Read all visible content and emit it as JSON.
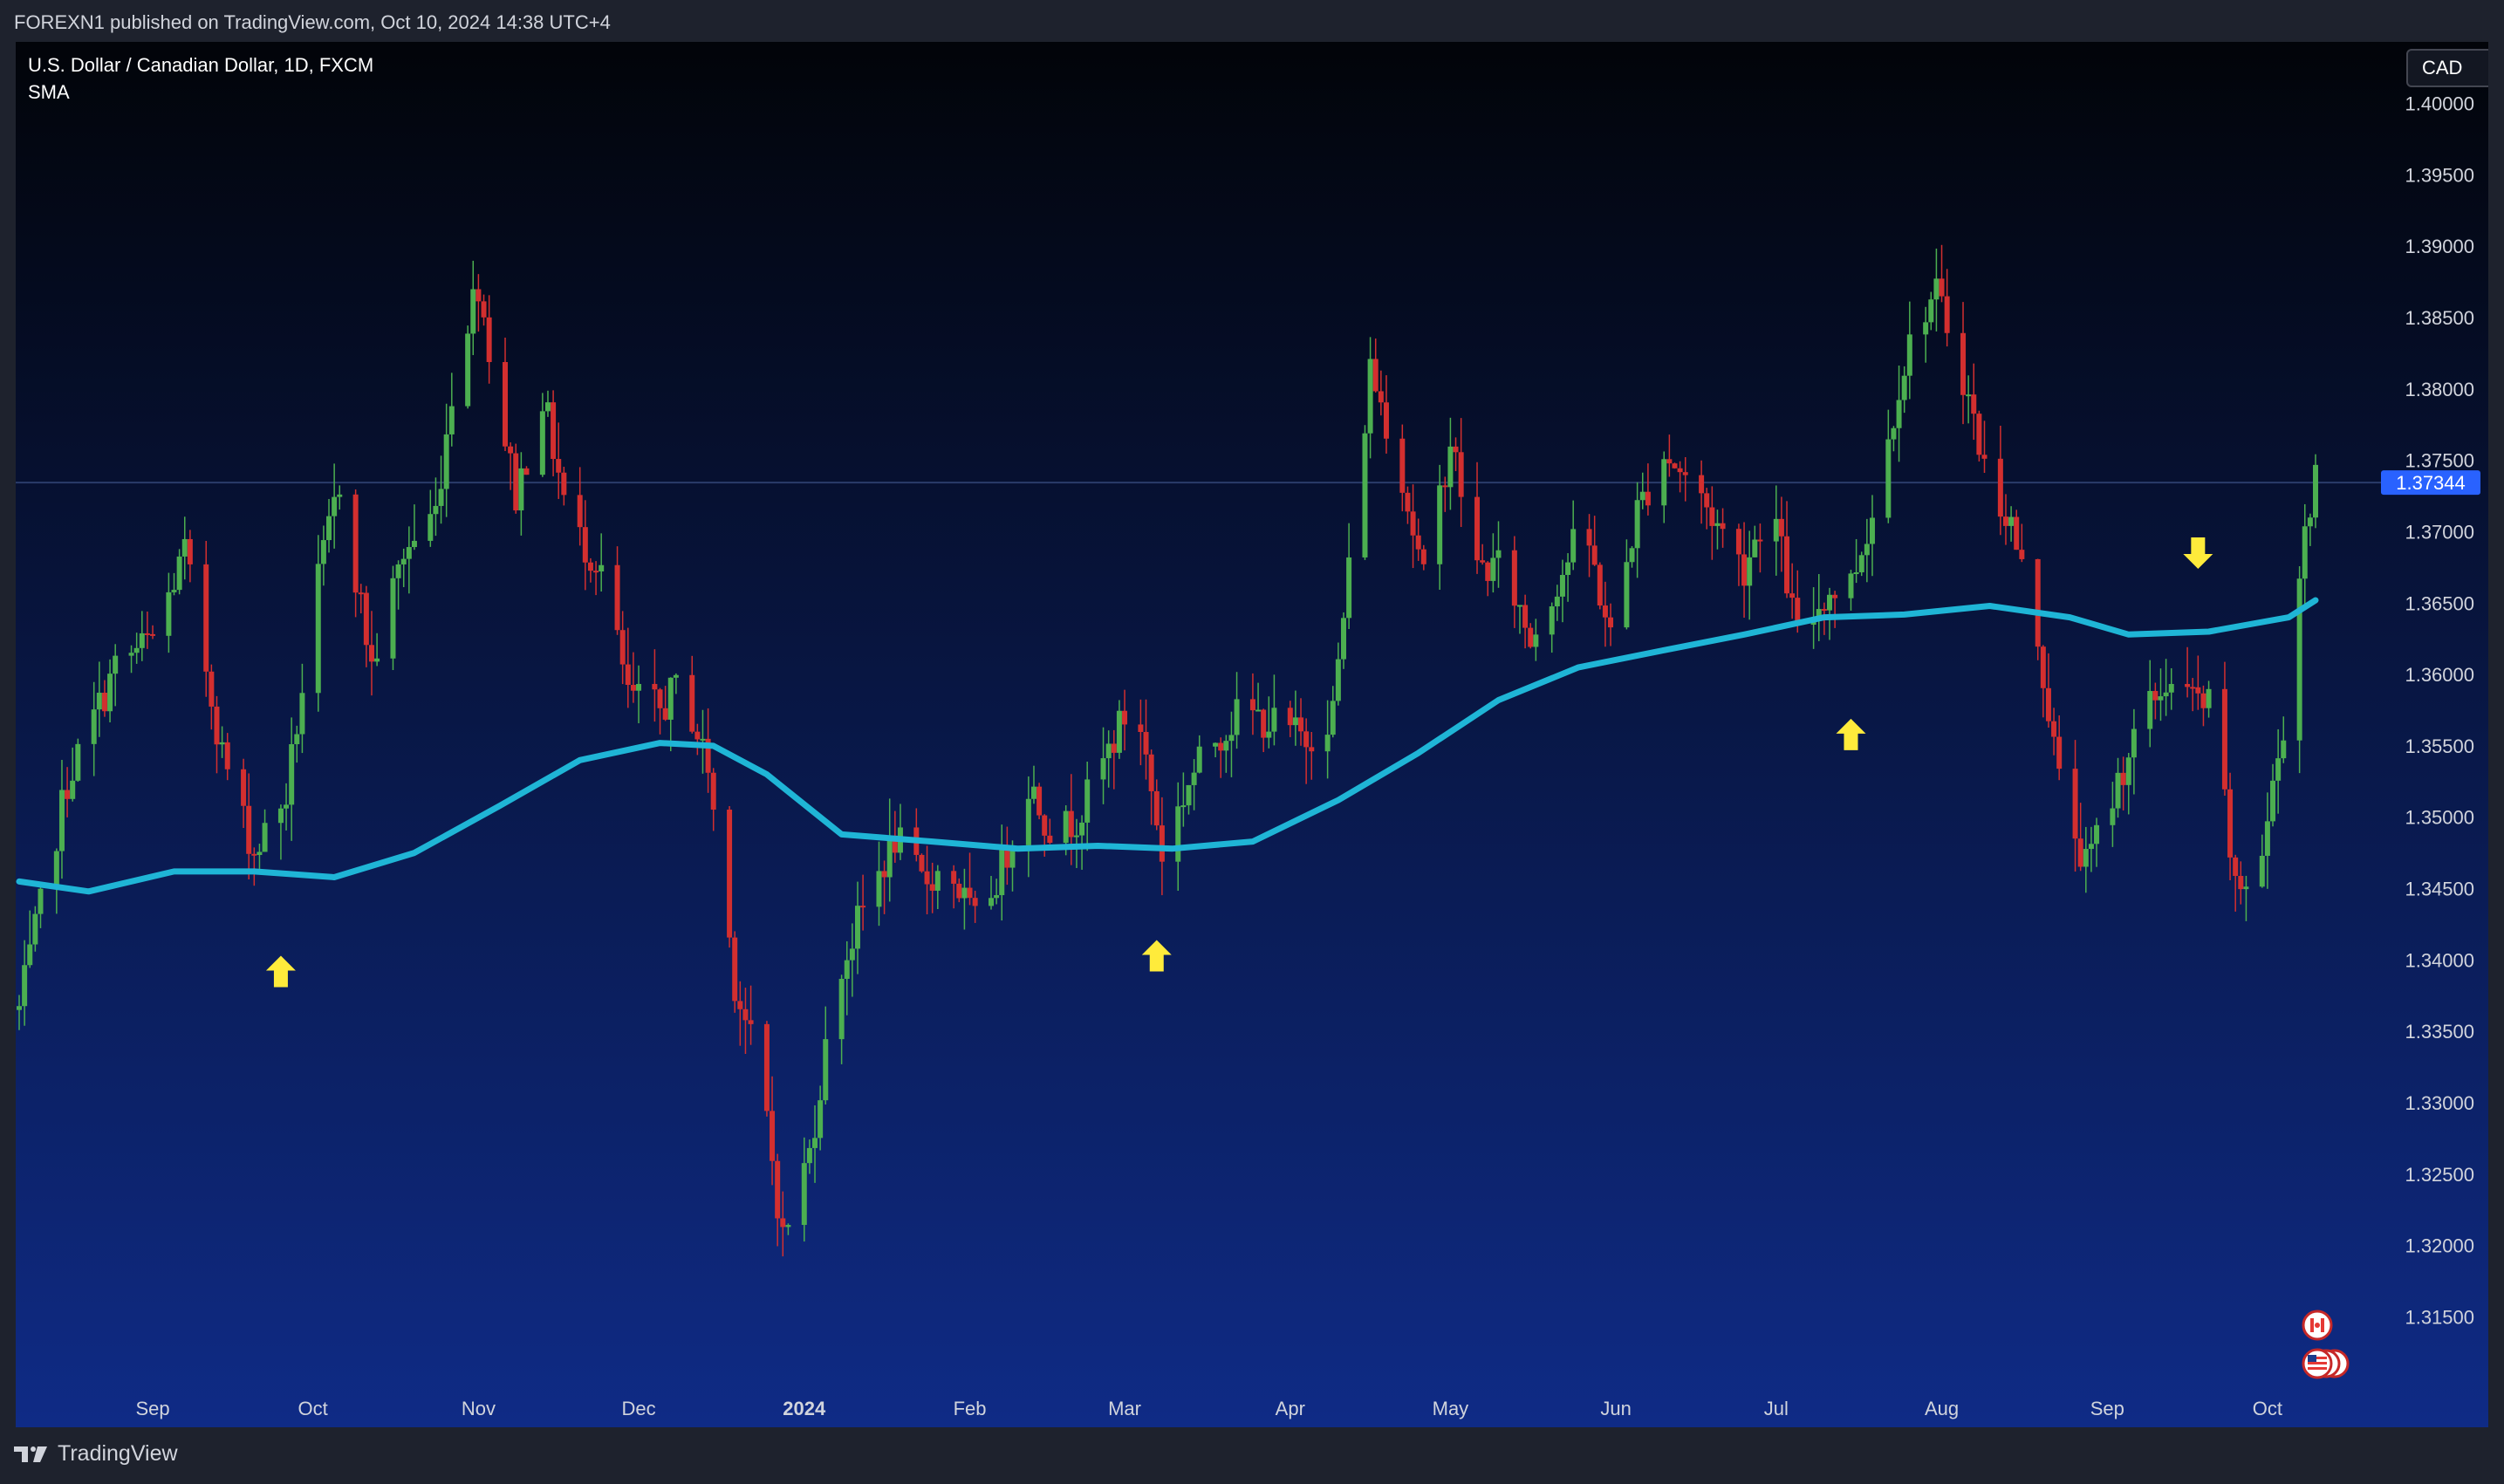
{
  "header": {
    "publish_text": "FOREXN1 published on TradingView.com, Oct 10, 2024 14:38 UTC+4"
  },
  "legend": {
    "symbol_title": "U.S. Dollar / Canadian Dollar, 1D, FXCM",
    "indicator": "SMA"
  },
  "currency": "CAD",
  "footer": {
    "brand": "TradingView",
    "logo_icon": "tradingview-logo-icon"
  },
  "colors": {
    "background_top": "#020409",
    "background_bottom": "#0f2b86",
    "up_candle": "#4caf50",
    "down_candle": "#d32f2f",
    "sma": "#1fb5d6",
    "arrow": "#ffeb3b",
    "price_label": "#2962ff"
  },
  "flags": [
    "canada-flag-icon",
    "usa-flag-icon"
  ],
  "chart_data": {
    "type": "candlestick",
    "symbol": "USDCAD",
    "timeframe": "1D",
    "ylim": [
      1.3,
      1.4025
    ],
    "y_ticks": [
      "1.40000",
      "1.39500",
      "1.39000",
      "1.38500",
      "1.38000",
      "1.37500",
      "1.37000",
      "1.36500",
      "1.36000",
      "1.35500",
      "1.35000",
      "1.34500",
      "1.34000",
      "1.33500",
      "1.33000",
      "1.32500",
      "1.32000",
      "1.31500"
    ],
    "x_ticks": [
      {
        "label": "Sep",
        "date": "2023-09-01"
      },
      {
        "label": "Oct",
        "date": "2023-10-01"
      },
      {
        "label": "Nov",
        "date": "2023-11-01"
      },
      {
        "label": "Dec",
        "date": "2023-12-01"
      },
      {
        "label": "2024",
        "date": "2024-01-01",
        "bold": true
      },
      {
        "label": "Feb",
        "date": "2024-02-01"
      },
      {
        "label": "Mar",
        "date": "2024-03-01"
      },
      {
        "label": "Apr",
        "date": "2024-04-01"
      },
      {
        "label": "May",
        "date": "2024-05-01"
      },
      {
        "label": "Jun",
        "date": "2024-06-01"
      },
      {
        "label": "Jul",
        "date": "2024-07-01"
      },
      {
        "label": "Aug",
        "date": "2024-08-01"
      },
      {
        "label": "Sep",
        "date": "2024-09-01"
      },
      {
        "label": "Oct",
        "date": "2024-10-01"
      }
    ],
    "last_price": "1.37344",
    "close_path": [
      [
        "2023-08-07",
        1.3365
      ],
      [
        "2023-08-16",
        1.3525
      ],
      [
        "2023-08-25",
        1.3605
      ],
      [
        "2023-09-01",
        1.3625
      ],
      [
        "2023-09-07",
        1.3685
      ],
      [
        "2023-09-14",
        1.3545
      ],
      [
        "2023-09-20",
        1.3475
      ],
      [
        "2023-09-26",
        1.3515
      ],
      [
        "2023-10-02",
        1.3665
      ],
      [
        "2023-10-06",
        1.3735
      ],
      [
        "2023-10-12",
        1.3605
      ],
      [
        "2023-10-18",
        1.3685
      ],
      [
        "2023-10-24",
        1.3715
      ],
      [
        "2023-10-28",
        1.3825
      ],
      [
        "2023-11-01",
        1.3875
      ],
      [
        "2023-11-04",
        1.3805
      ],
      [
        "2023-11-08",
        1.3725
      ],
      [
        "2023-11-13",
        1.3795
      ],
      [
        "2023-11-18",
        1.3705
      ],
      [
        "2023-11-24",
        1.3675
      ],
      [
        "2023-11-29",
        1.3585
      ],
      [
        "2023-12-05",
        1.3575
      ],
      [
        "2023-12-09",
        1.3595
      ],
      [
        "2023-12-14",
        1.3535
      ],
      [
        "2023-12-19",
        1.3385
      ],
      [
        "2023-12-24",
        1.3315
      ],
      [
        "2023-12-28",
        1.3205
      ],
      [
        "2024-01-02",
        1.3265
      ],
      [
        "2024-01-07",
        1.3385
      ],
      [
        "2024-01-13",
        1.3445
      ],
      [
        "2024-01-18",
        1.3485
      ],
      [
        "2024-01-23",
        1.3455
      ],
      [
        "2024-01-28",
        1.3465
      ],
      [
        "2024-02-02",
        1.3425
      ],
      [
        "2024-02-07",
        1.3465
      ],
      [
        "2024-02-12",
        1.3525
      ],
      [
        "2024-02-17",
        1.3485
      ],
      [
        "2024-02-22",
        1.3505
      ],
      [
        "2024-02-28",
        1.3555
      ],
      [
        "2024-03-03",
        1.3585
      ],
      [
        "2024-03-08",
        1.3475
      ],
      [
        "2024-03-13",
        1.3525
      ],
      [
        "2024-03-18",
        1.3555
      ],
      [
        "2024-03-23",
        1.3575
      ],
      [
        "2024-03-29",
        1.3565
      ],
      [
        "2024-04-04",
        1.3555
      ],
      [
        "2024-04-09",
        1.3575
      ],
      [
        "2024-04-13",
        1.3705
      ],
      [
        "2024-04-16",
        1.3815
      ],
      [
        "2024-04-21",
        1.3755
      ],
      [
        "2024-04-26",
        1.3665
      ],
      [
        "2024-05-01",
        1.3765
      ],
      [
        "2024-05-06",
        1.3675
      ],
      [
        "2024-05-11",
        1.3675
      ],
      [
        "2024-05-16",
        1.3625
      ],
      [
        "2024-05-21",
        1.3665
      ],
      [
        "2024-05-26",
        1.3705
      ],
      [
        "2024-05-31",
        1.3625
      ],
      [
        "2024-06-05",
        1.3715
      ],
      [
        "2024-06-10",
        1.3755
      ],
      [
        "2024-06-15",
        1.3735
      ],
      [
        "2024-06-20",
        1.3705
      ],
      [
        "2024-06-25",
        1.3675
      ],
      [
        "2024-06-30",
        1.3725
      ],
      [
        "2024-07-05",
        1.3625
      ],
      [
        "2024-07-10",
        1.3655
      ],
      [
        "2024-07-15",
        1.3665
      ],
      [
        "2024-07-20",
        1.3725
      ],
      [
        "2024-07-24",
        1.3805
      ],
      [
        "2024-07-28",
        1.3855
      ],
      [
        "2024-07-31",
        1.3865
      ],
      [
        "2024-08-04",
        1.3825
      ],
      [
        "2024-08-09",
        1.3745
      ],
      [
        "2024-08-14",
        1.3705
      ],
      [
        "2024-08-19",
        1.3625
      ],
      [
        "2024-08-23",
        1.3525
      ],
      [
        "2024-08-28",
        1.3465
      ],
      [
        "2024-09-02",
        1.3515
      ],
      [
        "2024-09-07",
        1.3565
      ],
      [
        "2024-09-12",
        1.3595
      ],
      [
        "2024-09-16",
        1.3585
      ],
      [
        "2024-09-21",
        1.3575
      ],
      [
        "2024-09-25",
        1.3445
      ],
      [
        "2024-09-30",
        1.3475
      ],
      [
        "2024-10-04",
        1.3565
      ],
      [
        "2024-10-08",
        1.3705
      ],
      [
        "2024-10-10",
        1.3734
      ]
    ],
    "sma_path": [
      [
        "2023-08-07",
        1.3455
      ],
      [
        "2023-08-20",
        1.3448
      ],
      [
        "2023-09-05",
        1.3462
      ],
      [
        "2023-09-20",
        1.3462
      ],
      [
        "2023-10-05",
        1.3458
      ],
      [
        "2023-10-20",
        1.3475
      ],
      [
        "2023-11-05",
        1.3508
      ],
      [
        "2023-11-20",
        1.354
      ],
      [
        "2023-12-05",
        1.3552
      ],
      [
        "2023-12-15",
        1.355
      ],
      [
        "2023-12-25",
        1.353
      ],
      [
        "2024-01-08",
        1.3488
      ],
      [
        "2024-01-25",
        1.3483
      ],
      [
        "2024-02-10",
        1.3478
      ],
      [
        "2024-02-25",
        1.348
      ],
      [
        "2024-03-10",
        1.3478
      ],
      [
        "2024-03-25",
        1.3483
      ],
      [
        "2024-04-10",
        1.3512
      ],
      [
        "2024-04-25",
        1.3545
      ],
      [
        "2024-05-10",
        1.3582
      ],
      [
        "2024-05-25",
        1.3605
      ],
      [
        "2024-06-10",
        1.3617
      ],
      [
        "2024-06-25",
        1.3628
      ],
      [
        "2024-07-10",
        1.364
      ],
      [
        "2024-07-25",
        1.3642
      ],
      [
        "2024-08-10",
        1.3648
      ],
      [
        "2024-08-25",
        1.364
      ],
      [
        "2024-09-05",
        1.3628
      ],
      [
        "2024-09-20",
        1.363
      ],
      [
        "2024-10-05",
        1.364
      ],
      [
        "2024-10-10",
        1.3652
      ]
    ],
    "annotations": [
      {
        "type": "arrow-up",
        "date": "2023-09-25",
        "price": 1.3392
      },
      {
        "type": "arrow-up",
        "date": "2024-03-07",
        "price": 1.3403
      },
      {
        "type": "arrow-up",
        "date": "2024-07-15",
        "price": 1.3558
      },
      {
        "type": "arrow-down",
        "date": "2024-09-18",
        "price": 1.3685
      }
    ]
  }
}
